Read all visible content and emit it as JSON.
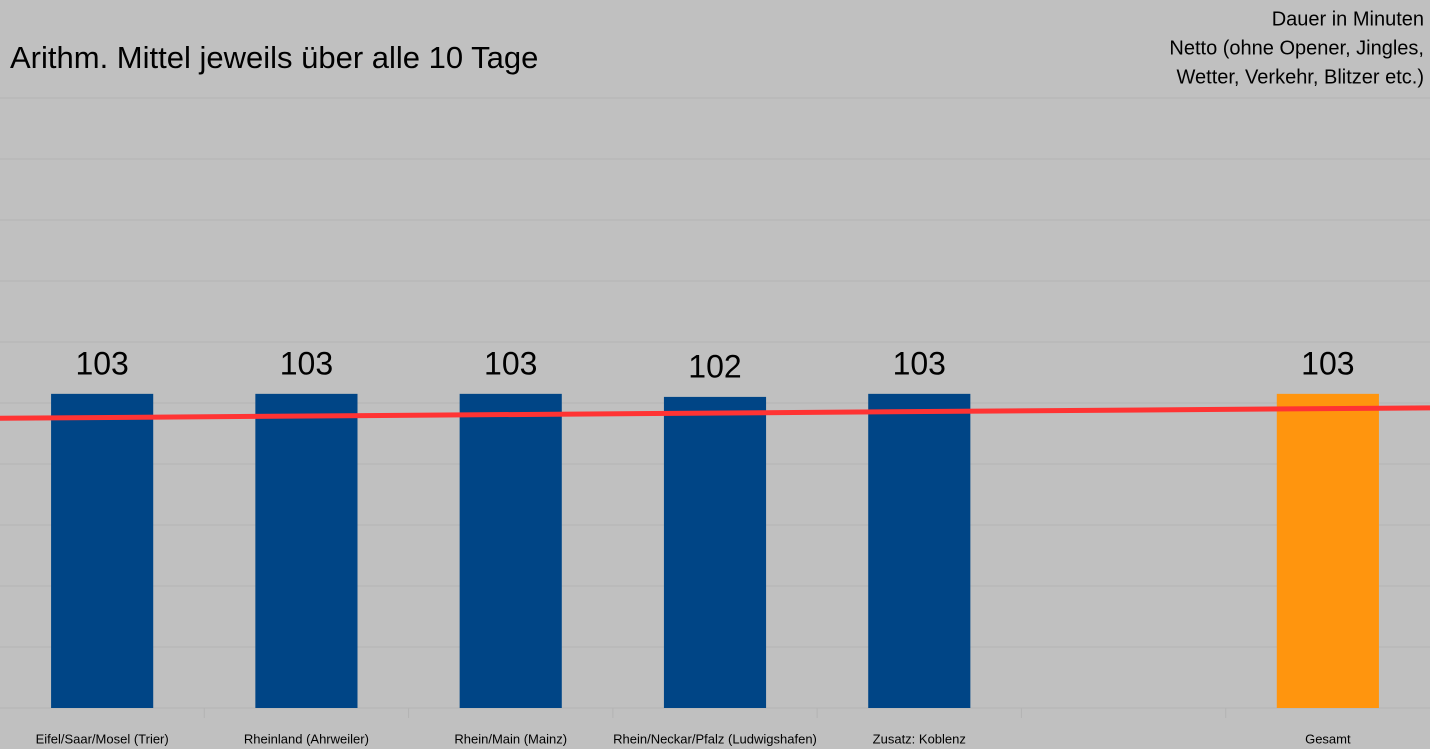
{
  "chart_data": {
    "type": "bar",
    "title": "Arithm. Mittel jeweils über alle 10 Tage",
    "annotation": [
      "Dauer in Minuten",
      "Netto (ohne Opener, Jingles,",
      "Wetter, Verkehr, Blitzer etc.)"
    ],
    "categories": [
      "Eifel/Saar/Mosel (Trier)",
      "Rheinland (Ahrweiler)",
      "Rhein/Main (Mainz)",
      "Rhein/Neckar/Pfalz (Ludwigshafen)",
      "Zusatz: Koblenz",
      null,
      "Gesamt"
    ],
    "values": [
      103,
      103,
      103,
      102,
      103,
      null,
      103
    ],
    "colors": [
      "#004586",
      "#004586",
      "#004586",
      "#004586",
      "#004586",
      null,
      "#ff950e"
    ],
    "ylim": [
      0,
      200
    ],
    "yticks": [
      0,
      20,
      40,
      60,
      80,
      100,
      120,
      140,
      160,
      180,
      200
    ],
    "grid": true,
    "trendline": {
      "color": "#ff3333",
      "start": 95,
      "end": 98.4
    }
  }
}
